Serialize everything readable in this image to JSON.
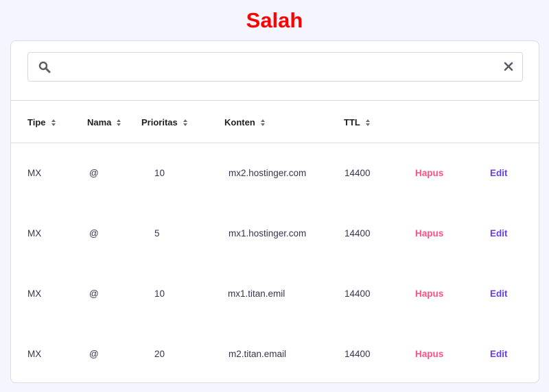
{
  "title": "Salah",
  "search": {
    "value": "",
    "placeholder": ""
  },
  "columns": [
    "Tipe",
    "Nama",
    "Prioritas",
    "Konten",
    "TTL"
  ],
  "rows": [
    {
      "tipe": "MX",
      "nama": "@",
      "prioritas": "10",
      "konten": "mx2.hostinger.com",
      "ttl": "14400",
      "delete": "Hapus",
      "edit": "Edit"
    },
    {
      "tipe": "MX",
      "nama": "@",
      "prioritas": "5",
      "konten": "mx1.hostinger.com",
      "ttl": "14400",
      "delete": "Hapus",
      "edit": "Edit"
    },
    {
      "tipe": "MX",
      "nama": "@",
      "prioritas": "10",
      "konten": "mx1.titan.emil",
      "ttl": "14400",
      "delete": "Hapus",
      "edit": "Edit"
    },
    {
      "tipe": "MX",
      "nama": "@",
      "prioritas": "20",
      "konten": "m2.titan.email",
      "ttl": "14400",
      "delete": "Hapus",
      "edit": "Edit"
    }
  ],
  "colors": {
    "title": "#ff0000",
    "delete": "#fc5185",
    "edit": "#673de6",
    "background": "#f4f5ff"
  }
}
